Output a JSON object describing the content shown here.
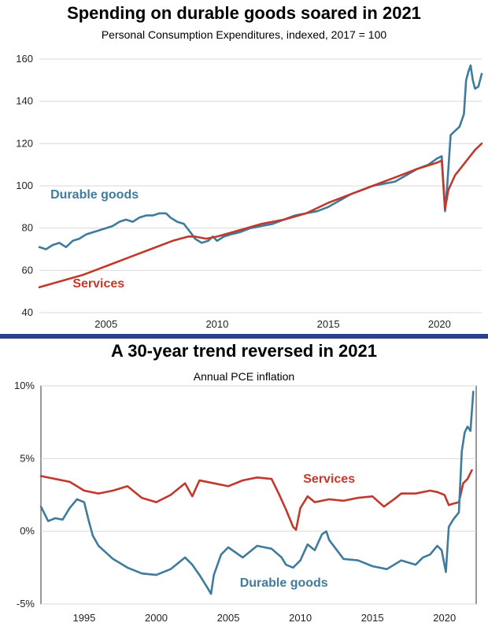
{
  "chart_data": [
    {
      "type": "line",
      "title": "Spending on durable goods soared in 2021",
      "subtitle": "Personal Consumption Expenditures, indexed, 2017 = 100",
      "xlim": [
        2002,
        2021.9
      ],
      "ylim": [
        40,
        160
      ],
      "xticks": [
        2005,
        2010,
        2015,
        2020
      ],
      "yticks": [
        40,
        60,
        80,
        100,
        120,
        140,
        160
      ],
      "grid": "horizontal",
      "colors": {
        "durable": "#3f7b9c",
        "services": "#c0392b"
      },
      "series": [
        {
          "name": "Durable goods",
          "x": [
            2002.0,
            2002.3,
            2002.6,
            2002.9,
            2003.2,
            2003.5,
            2003.8,
            2004.1,
            2004.4,
            2004.7,
            2005.0,
            2005.3,
            2005.6,
            2005.9,
            2006.2,
            2006.5,
            2006.8,
            2007.1,
            2007.4,
            2007.7,
            2007.9,
            2008.2,
            2008.5,
            2008.8,
            2009.0,
            2009.3,
            2009.6,
            2009.8,
            2010.0,
            2010.3,
            2010.6,
            2011.0,
            2011.5,
            2012.0,
            2012.5,
            2013.0,
            2013.5,
            2014.0,
            2014.5,
            2015.0,
            2015.5,
            2016.0,
            2016.5,
            2017.0,
            2017.5,
            2018.0,
            2018.5,
            2019.0,
            2019.5,
            2019.9,
            2020.1,
            2020.25,
            2020.35,
            2020.5,
            2020.7,
            2020.9,
            2021.1,
            2021.2,
            2021.3,
            2021.4,
            2021.5,
            2021.6,
            2021.75,
            2021.9
          ],
          "y": [
            71,
            70,
            72,
            73,
            71,
            74,
            75,
            77,
            78,
            79,
            80,
            81,
            83,
            84,
            83,
            85,
            86,
            86,
            87,
            87,
            85,
            83,
            82,
            78,
            75,
            73,
            74,
            76,
            74,
            76,
            77,
            78,
            80,
            81,
            82,
            84,
            86,
            87,
            88,
            90,
            93,
            96,
            98,
            100,
            101,
            102,
            105,
            108,
            110,
            113,
            114,
            88,
            100,
            124,
            126,
            128,
            134,
            150,
            154,
            157,
            150,
            146,
            147,
            153
          ]
        },
        {
          "name": "Services",
          "x": [
            2002.0,
            2003.0,
            2004.0,
            2005.0,
            2006.0,
            2007.0,
            2008.0,
            2008.7,
            2009.0,
            2009.5,
            2010.0,
            2011.0,
            2012.0,
            2013.0,
            2014.0,
            2015.0,
            2016.0,
            2017.0,
            2018.0,
            2019.0,
            2019.9,
            2020.1,
            2020.25,
            2020.4,
            2020.7,
            2021.0,
            2021.3,
            2021.6,
            2021.9
          ],
          "y": [
            52,
            55,
            58,
            62,
            66,
            70,
            74,
            76,
            76,
            75,
            76,
            79,
            82,
            84,
            87,
            92,
            96,
            100,
            104,
            108,
            111,
            112,
            89,
            98,
            105,
            109,
            113,
            117,
            120
          ]
        }
      ],
      "annotations": [
        {
          "text": "Durable goods",
          "series": "Durable goods",
          "x": 2002.5,
          "y": 94
        },
        {
          "text": "Services",
          "series": "Services",
          "x": 2003.5,
          "y": 52
        }
      ]
    },
    {
      "type": "line",
      "title": "A 30-year trend reversed in 2021",
      "subtitle": "Annual PCE inflation",
      "xlim": [
        1992,
        2022.2
      ],
      "ylim": [
        -5,
        10
      ],
      "xticks": [
        1995,
        2000,
        2005,
        2010,
        2015,
        2020
      ],
      "yticks": [
        -5,
        0,
        5,
        10
      ],
      "ytick_labels": [
        "-5%",
        "0%",
        "5%",
        "10%"
      ],
      "grid": "horizontal",
      "colors": {
        "durable": "#3f7b9c",
        "services": "#c0392b"
      },
      "series": [
        {
          "name": "Services",
          "x": [
            1992.0,
            1993.0,
            1994.0,
            1995.0,
            1996.0,
            1997.0,
            1998.0,
            1999.0,
            2000.0,
            2001.0,
            2002.0,
            2002.5,
            2003.0,
            2004.0,
            2005.0,
            2006.0,
            2007.0,
            2008.0,
            2008.5,
            2009.0,
            2009.5,
            2009.7,
            2010.0,
            2010.5,
            2011.0,
            2012.0,
            2013.0,
            2014.0,
            2015.0,
            2015.8,
            2016.5,
            2017.0,
            2018.0,
            2019.0,
            2019.5,
            2020.0,
            2020.3,
            2020.6,
            2021.0,
            2021.3,
            2021.6,
            2021.9
          ],
          "y": [
            3.8,
            3.6,
            3.4,
            2.8,
            2.6,
            2.8,
            3.1,
            2.3,
            2.0,
            2.5,
            3.3,
            2.4,
            3.5,
            3.3,
            3.1,
            3.5,
            3.7,
            3.6,
            2.6,
            1.5,
            0.3,
            0.1,
            1.6,
            2.4,
            2.0,
            2.2,
            2.1,
            2.3,
            2.4,
            1.7,
            2.2,
            2.6,
            2.6,
            2.8,
            2.7,
            2.5,
            1.8,
            1.9,
            2.0,
            3.3,
            3.6,
            4.2
          ]
        },
        {
          "name": "Durable goods",
          "x": [
            1992.0,
            1992.5,
            1993.0,
            1993.5,
            1994.0,
            1994.5,
            1995.0,
            1995.3,
            1995.6,
            1996.0,
            1997.0,
            1998.0,
            1999.0,
            2000.0,
            2001.0,
            2002.0,
            2002.5,
            2003.0,
            2003.5,
            2003.8,
            2004.0,
            2004.5,
            2005.0,
            2006.0,
            2007.0,
            2008.0,
            2008.7,
            2009.0,
            2009.5,
            2010.0,
            2010.5,
            2011.0,
            2011.5,
            2011.8,
            2012.0,
            2013.0,
            2014.0,
            2015.0,
            2016.0,
            2017.0,
            2018.0,
            2018.5,
            2019.0,
            2019.5,
            2019.8,
            2020.1,
            2020.3,
            2020.6,
            2021.0,
            2021.2,
            2021.4,
            2021.6,
            2021.8,
            2022.0
          ],
          "y": [
            1.7,
            0.7,
            0.9,
            0.8,
            1.6,
            2.2,
            2.0,
            0.8,
            -0.3,
            -1.0,
            -1.9,
            -2.5,
            -2.9,
            -3.0,
            -2.6,
            -1.8,
            -2.3,
            -3.0,
            -3.8,
            -4.3,
            -3.0,
            -1.6,
            -1.1,
            -1.8,
            -1.0,
            -1.2,
            -1.8,
            -2.3,
            -2.5,
            -2.0,
            -0.9,
            -1.3,
            -0.2,
            0.0,
            -0.6,
            -1.9,
            -2.0,
            -2.4,
            -2.6,
            -2.0,
            -2.3,
            -1.8,
            -1.6,
            -1.0,
            -1.3,
            -2.8,
            0.3,
            0.8,
            1.3,
            5.5,
            6.8,
            7.2,
            6.9,
            9.6
          ]
        }
      ],
      "annotations": [
        {
          "text": "Services",
          "series": "Services",
          "x": 2010.2,
          "y": 3.35
        },
        {
          "text": "Durable goods",
          "series": "Durable goods",
          "x": 2005.8,
          "y": -3.8
        }
      ]
    }
  ]
}
